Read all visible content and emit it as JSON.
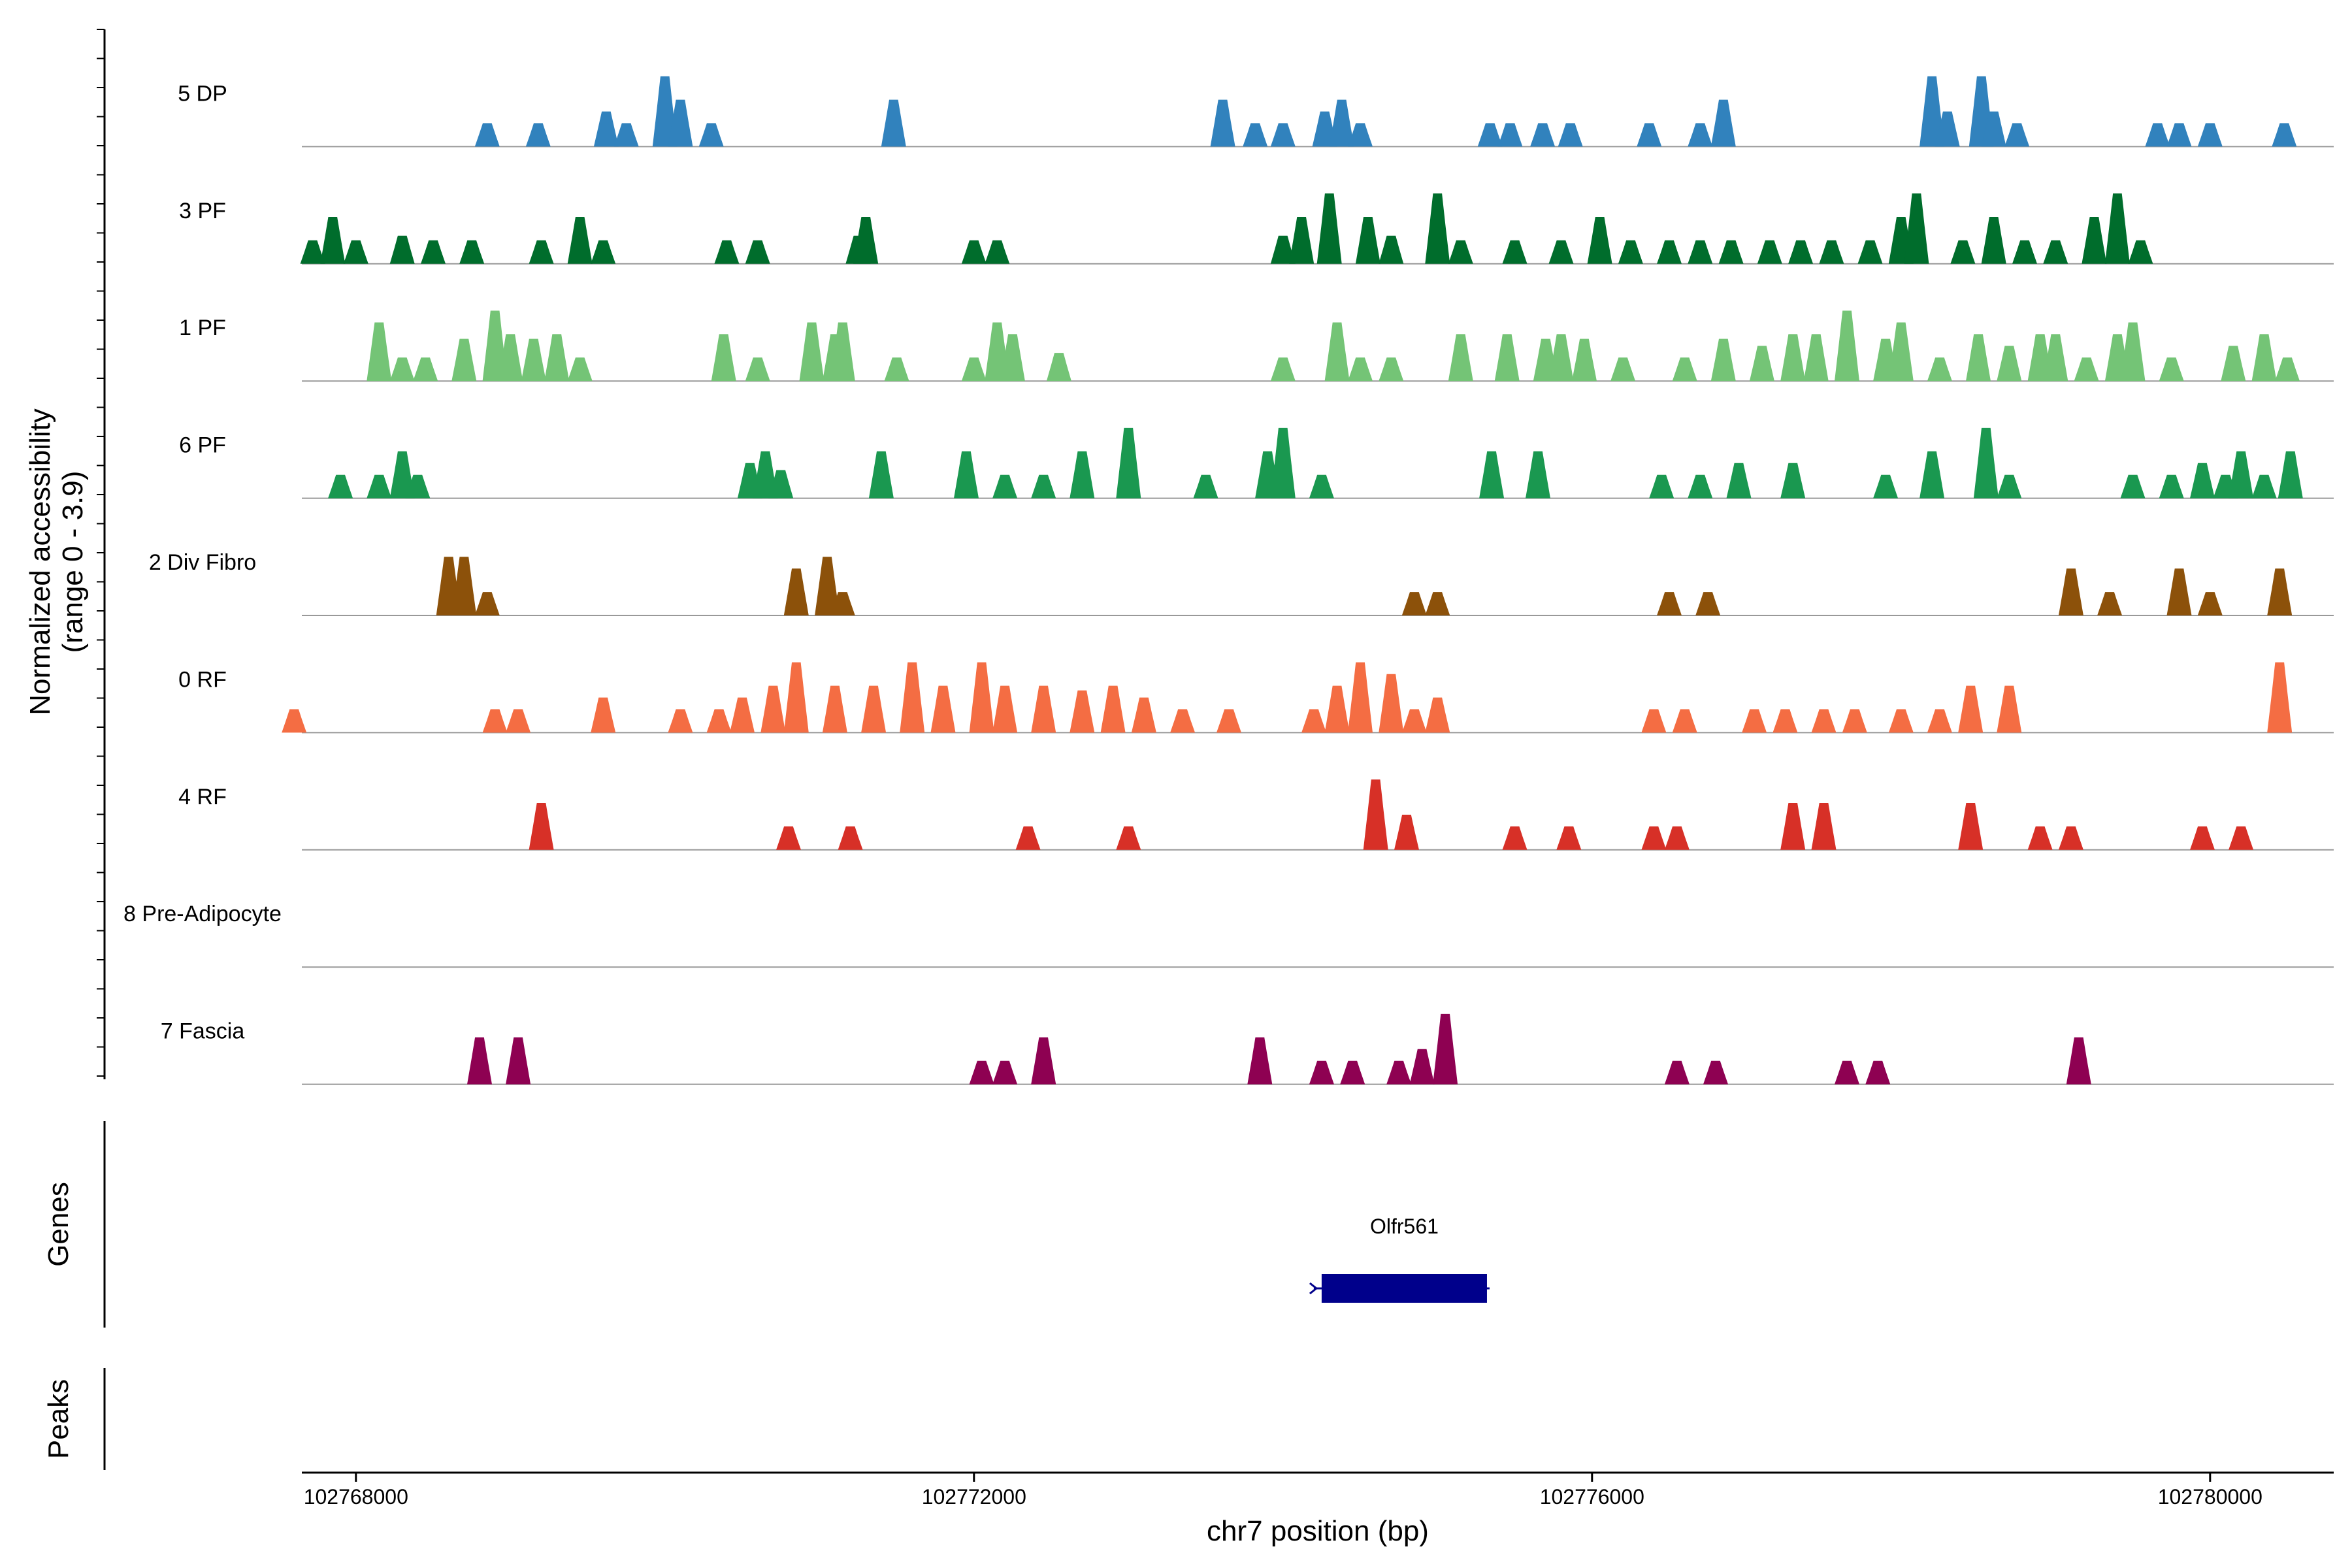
{
  "chart_data": {
    "type": "area",
    "title": "",
    "ylabel": "Normalized accessibility",
    "ylabel_range": "(range 0 - 3.9)",
    "xlabel": "chr7 position (bp)",
    "xlim": [
      102767650,
      102780800
    ],
    "ylim": [
      0,
      3.9
    ],
    "x_ticks": [
      102768000,
      102772000,
      102776000,
      102780000
    ],
    "x_tick_labels": [
      "102768000",
      "102772000",
      "102776000",
      "102780000"
    ],
    "tracks": [
      {
        "name": "5 DP",
        "color": "#3182bd",
        "peaks": [
          [
            102768850,
            1.0
          ],
          [
            102769180,
            1.0
          ],
          [
            102769620,
            1.5
          ],
          [
            102769750,
            1.0
          ],
          [
            102770000,
            3.0
          ],
          [
            102770100,
            2.0
          ],
          [
            102770300,
            1.0
          ],
          [
            102771480,
            2.0
          ],
          [
            102772170,
            0
          ],
          [
            102773610,
            2.0
          ],
          [
            102773820,
            1.0
          ],
          [
            102774000,
            1.0
          ],
          [
            102774270,
            1.5
          ],
          [
            102774380,
            2.0
          ],
          [
            102774500,
            1.0
          ],
          [
            102775340,
            1.0
          ],
          [
            102775470,
            1.0
          ],
          [
            102775680,
            1.0
          ],
          [
            102775860,
            1.0
          ],
          [
            102776370,
            1.0
          ],
          [
            102776700,
            1.0
          ],
          [
            102776850,
            2.0
          ],
          [
            102778200,
            3.0
          ],
          [
            102778300,
            1.5
          ],
          [
            102778520,
            3.0
          ],
          [
            102778600,
            1.5
          ],
          [
            102778750,
            1.0
          ],
          [
            102779660,
            1.0
          ],
          [
            102779800,
            1.0
          ],
          [
            102780000,
            1.0
          ],
          [
            102780480,
            1.0
          ]
        ]
      },
      {
        "name": "3 PF",
        "color": "#006d2c",
        "peaks": [
          [
            102767720,
            1.0
          ],
          [
            102767850,
            2.0
          ],
          [
            102768000,
            1.0
          ],
          [
            102768300,
            1.2
          ],
          [
            102768500,
            1.0
          ],
          [
            102768750,
            1.0
          ],
          [
            102769200,
            1.0
          ],
          [
            102769450,
            2.0
          ],
          [
            102769600,
            1.0
          ],
          [
            102770400,
            1.0
          ],
          [
            102770600,
            1.0
          ],
          [
            102771250,
            1.2
          ],
          [
            102771300,
            2.0
          ],
          [
            102772000,
            1.0
          ],
          [
            102772150,
            1.0
          ],
          [
            102774000,
            1.2
          ],
          [
            102774120,
            2.0
          ],
          [
            102774300,
            3.0
          ],
          [
            102774550,
            2.0
          ],
          [
            102774700,
            1.2
          ],
          [
            102775000,
            3.0
          ],
          [
            102775150,
            1.0
          ],
          [
            102775500,
            1.0
          ],
          [
            102775800,
            1.0
          ],
          [
            102776050,
            2.0
          ],
          [
            102776250,
            1.0
          ],
          [
            102776500,
            1.0
          ],
          [
            102776700,
            1.0
          ],
          [
            102776900,
            1.0
          ],
          [
            102777150,
            1.0
          ],
          [
            102777350,
            1.0
          ],
          [
            102777550,
            1.0
          ],
          [
            102777800,
            1.0
          ],
          [
            102778000,
            2.0
          ],
          [
            102778100,
            3.0
          ],
          [
            102778400,
            1.0
          ],
          [
            102778600,
            2.0
          ],
          [
            102778800,
            1.0
          ],
          [
            102779000,
            1.0
          ],
          [
            102779250,
            2.0
          ],
          [
            102779400,
            3.0
          ],
          [
            102779550,
            1.0
          ]
        ]
      },
      {
        "name": "1 PF",
        "color": "#74c476",
        "peaks": [
          [
            102768150,
            2.5
          ],
          [
            102768300,
            1.0
          ],
          [
            102768450,
            1.0
          ],
          [
            102768700,
            1.8
          ],
          [
            102768900,
            3.0
          ],
          [
            102769000,
            2.0
          ],
          [
            102769150,
            1.8
          ],
          [
            102769300,
            2.0
          ],
          [
            102769450,
            1.0
          ],
          [
            102770380,
            2.0
          ],
          [
            102770600,
            1.0
          ],
          [
            102770950,
            2.5
          ],
          [
            102771100,
            2.0
          ],
          [
            102771150,
            2.5
          ],
          [
            102771500,
            1.0
          ],
          [
            102772000,
            1.0
          ],
          [
            102772150,
            2.5
          ],
          [
            102772250,
            2.0
          ],
          [
            102772550,
            1.2
          ],
          [
            102774000,
            1.0
          ],
          [
            102774350,
            2.5
          ],
          [
            102774500,
            1.0
          ],
          [
            102774700,
            1.0
          ],
          [
            102775150,
            2.0
          ],
          [
            102775450,
            2.0
          ],
          [
            102775700,
            1.8
          ],
          [
            102775800,
            2.0
          ],
          [
            102775950,
            1.8
          ],
          [
            102776200,
            1.0
          ],
          [
            102776600,
            1.0
          ],
          [
            102776850,
            1.8
          ],
          [
            102777100,
            1.5
          ],
          [
            102777300,
            2.0
          ],
          [
            102777450,
            2.0
          ],
          [
            102777650,
            3.0
          ],
          [
            102777900,
            1.8
          ],
          [
            102778000,
            2.5
          ],
          [
            102778250,
            1.0
          ],
          [
            102778500,
            2.0
          ],
          [
            102778700,
            1.5
          ],
          [
            102778900,
            2.0
          ],
          [
            102779000,
            2.0
          ],
          [
            102779200,
            1.0
          ],
          [
            102779400,
            2.0
          ],
          [
            102779500,
            2.5
          ],
          [
            102779750,
            1.0
          ],
          [
            102780150,
            1.5
          ],
          [
            102780350,
            2.0
          ],
          [
            102780500,
            1.0
          ]
        ]
      },
      {
        "name": "6 PF",
        "color": "#1a9850",
        "peaks": [
          [
            102767900,
            1.0
          ],
          [
            102768150,
            1.0
          ],
          [
            102768300,
            2.0
          ],
          [
            102768400,
            1.0
          ],
          [
            102770550,
            1.5
          ],
          [
            102770650,
            2.0
          ],
          [
            102770750,
            1.2
          ],
          [
            102771400,
            2.0
          ],
          [
            102771950,
            2.0
          ],
          [
            102772200,
            1.0
          ],
          [
            102772450,
            1.0
          ],
          [
            102772700,
            2.0
          ],
          [
            102773000,
            3.0
          ],
          [
            102773000,
            1.0
          ],
          [
            102773500,
            1.0
          ],
          [
            102773900,
            2.0
          ],
          [
            102774000,
            3.0
          ],
          [
            102774250,
            1.0
          ],
          [
            102775350,
            2.0
          ],
          [
            102775650,
            2.0
          ],
          [
            102776450,
            1.0
          ],
          [
            102776700,
            1.0
          ],
          [
            102776950,
            1.5
          ],
          [
            102777300,
            1.5
          ],
          [
            102777900,
            1.0
          ],
          [
            102778200,
            2.0
          ],
          [
            102778550,
            3.0
          ],
          [
            102778700,
            1.0
          ],
          [
            102779500,
            1.0
          ],
          [
            102779750,
            1.0
          ],
          [
            102779950,
            1.5
          ],
          [
            102780100,
            1.0
          ],
          [
            102780200,
            2.0
          ],
          [
            102780350,
            1.0
          ],
          [
            102780520,
            2.0
          ]
        ]
      },
      {
        "name": "2 Div Fibro",
        "color": "#8c510a",
        "peaks": [
          [
            102768600,
            2.5
          ],
          [
            102768700,
            2.5
          ],
          [
            102768850,
            1.0
          ],
          [
            102770850,
            2.0
          ],
          [
            102771050,
            2.5
          ],
          [
            102771150,
            1.0
          ],
          [
            102774850,
            1.0
          ],
          [
            102775000,
            1.0
          ],
          [
            102776500,
            1.0
          ],
          [
            102776750,
            1.0
          ],
          [
            102779100,
            2.0
          ],
          [
            102779350,
            1.0
          ],
          [
            102779800,
            2.0
          ],
          [
            102780000,
            1.0
          ],
          [
            102780450,
            2.0
          ]
        ]
      },
      {
        "name": "0 RF",
        "color": "#f46d43",
        "peaks": [
          [
            102767600,
            1.0
          ],
          [
            102768900,
            1.0
          ],
          [
            102769050,
            1.0
          ],
          [
            102769600,
            1.5
          ],
          [
            102770100,
            1.0
          ],
          [
            102770350,
            1.0
          ],
          [
            102770500,
            1.5
          ],
          [
            102770700,
            2.0
          ],
          [
            102770850,
            3.0
          ],
          [
            102771100,
            2.0
          ],
          [
            102771350,
            2.0
          ],
          [
            102771600,
            3.0
          ],
          [
            102771800,
            2.0
          ],
          [
            102772050,
            3.0
          ],
          [
            102772200,
            2.0
          ],
          [
            102772450,
            2.0
          ],
          [
            102772700,
            1.8
          ],
          [
            102772900,
            2.0
          ],
          [
            102773100,
            1.5
          ],
          [
            102773350,
            1.0
          ],
          [
            102773650,
            1.0
          ],
          [
            102774200,
            1.0
          ],
          [
            102774350,
            2.0
          ],
          [
            102774500,
            3.0
          ],
          [
            102774700,
            2.5
          ],
          [
            102774850,
            1.0
          ],
          [
            102775000,
            1.5
          ],
          [
            102776400,
            1.0
          ],
          [
            102776600,
            1.0
          ],
          [
            102777050,
            1.0
          ],
          [
            102777250,
            1.0
          ],
          [
            102777500,
            1.0
          ],
          [
            102777700,
            1.0
          ],
          [
            102778000,
            1.0
          ],
          [
            102778250,
            1.0
          ],
          [
            102778450,
            2.0
          ],
          [
            102778700,
            2.0
          ],
          [
            102780450,
            3.0
          ]
        ]
      },
      {
        "name": "4 RF",
        "color": "#d73027",
        "peaks": [
          [
            102769200,
            2.0
          ],
          [
            102770800,
            1.0
          ],
          [
            102771200,
            1.0
          ],
          [
            102772350,
            1.0
          ],
          [
            102773000,
            1.0
          ],
          [
            102774600,
            3.0
          ],
          [
            102774800,
            1.5
          ],
          [
            102775500,
            1.0
          ],
          [
            102775850,
            1.0
          ],
          [
            102776400,
            1.0
          ],
          [
            102776550,
            1.0
          ],
          [
            102777300,
            2.0
          ],
          [
            102777500,
            2.0
          ],
          [
            102778450,
            2.0
          ],
          [
            102778900,
            1.0
          ],
          [
            102779100,
            1.0
          ],
          [
            102779950,
            1.0
          ],
          [
            102780200,
            1.0
          ]
        ]
      },
      {
        "name": "8 Pre-Adipocyte",
        "color": "#7b3294",
        "peaks": []
      },
      {
        "name": "7 Fascia",
        "color": "#8e0152",
        "peaks": [
          [
            102768800,
            2.0
          ],
          [
            102769050,
            2.0
          ],
          [
            102772050,
            1.0
          ],
          [
            102772200,
            1.0
          ],
          [
            102772450,
            2.0
          ],
          [
            102773850,
            2.0
          ],
          [
            102774250,
            1.0
          ],
          [
            102774450,
            1.0
          ],
          [
            102774750,
            1.0
          ],
          [
            102774900,
            1.5
          ],
          [
            102775050,
            3.0
          ],
          [
            102776550,
            1.0
          ],
          [
            102776800,
            1.0
          ],
          [
            102777650,
            1.0
          ],
          [
            102777850,
            1.0
          ],
          [
            102779150,
            2.0
          ]
        ]
      }
    ],
    "genes": {
      "title": "Genes",
      "items": [
        {
          "name": "Olfr561",
          "start": 102774250,
          "end": 102775320,
          "strand": "-",
          "color": "#00008b"
        }
      ]
    },
    "peaks_panel": {
      "title": "Peaks"
    }
  }
}
